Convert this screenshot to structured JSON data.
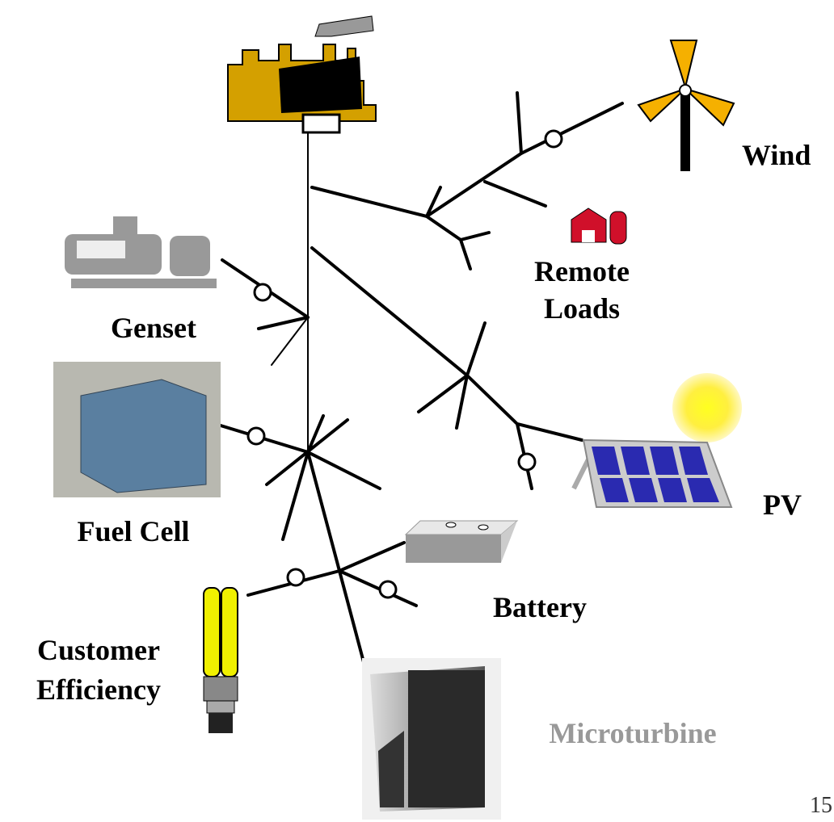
{
  "nodes": [
    {
      "label": [
        "Wind"
      ]
    },
    {
      "label": [
        "Remote",
        "Loads"
      ]
    },
    {
      "label": [
        "Genset"
      ]
    },
    {
      "label": [
        "Fuel Cell"
      ]
    },
    {
      "label": [
        "PV"
      ]
    },
    {
      "label": [
        "Battery"
      ]
    },
    {
      "label": [
        "Customer",
        "Efficiency"
      ]
    },
    {
      "label": [
        "Microturbine"
      ]
    }
  ],
  "page_number": "15"
}
